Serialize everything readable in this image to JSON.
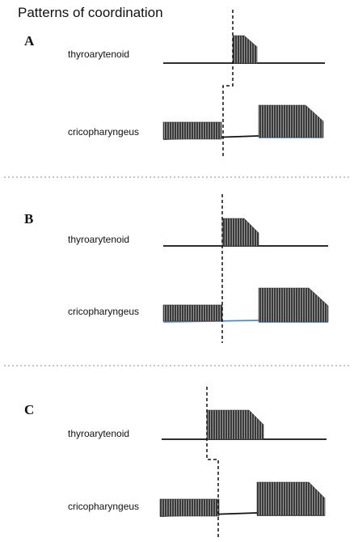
{
  "figure": {
    "title": "Patterns of coordination",
    "muscle_labels": {
      "top": "thyroarytenoid",
      "bottom": "cricopharyngeus"
    },
    "panels": [
      {
        "letter": "A"
      },
      {
        "letter": "B"
      },
      {
        "letter": "C"
      }
    ]
  },
  "colors": {
    "burst_fill": "#3a3a3a",
    "burst_stripe": "#9a9a9a",
    "baseline": "#111111",
    "baseline_accent": "#5b86c5",
    "divider": "#8a8a8a"
  }
}
